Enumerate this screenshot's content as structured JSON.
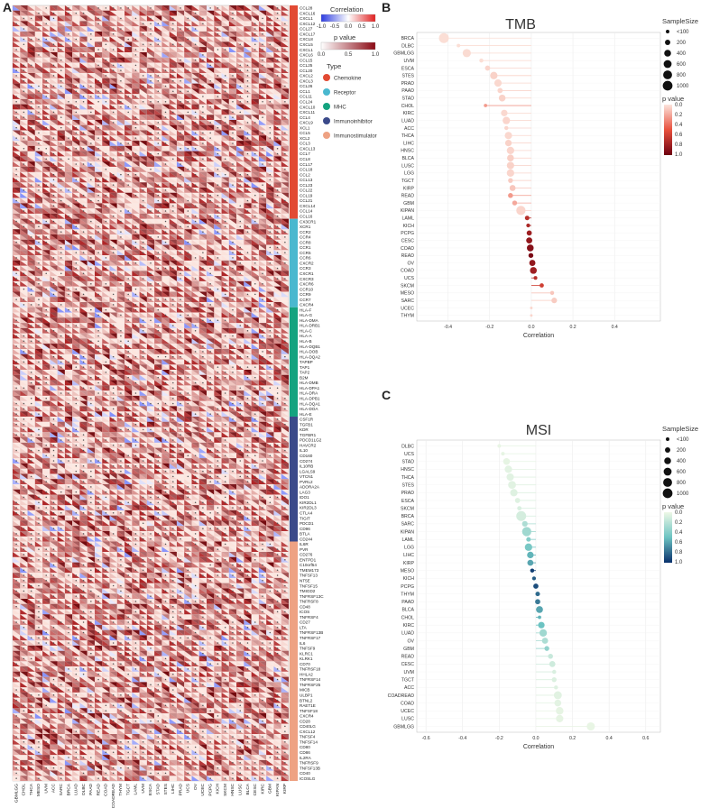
{
  "panels": {
    "A": "A",
    "B": "B",
    "C": "C"
  },
  "chart_data": [
    {
      "type": "heatmap",
      "panel": "A",
      "cancers": [
        "GBMLGG",
        "CHOL",
        "THCA",
        "MESO",
        "UVM",
        "ACC",
        "SARC",
        "BRCA",
        "LUAD",
        "DLBC",
        "PAAD",
        "READ",
        "COAD",
        "COADREAD",
        "THYM",
        "TGCT",
        "LAML",
        "UVM",
        "ESCA",
        "STAD",
        "STES",
        "LIHC",
        "PRAD",
        "UCS",
        "OV",
        "UCEC",
        "PCPG",
        "KICH",
        "SKCM",
        "HNSC",
        "LUSC",
        "BLCA",
        "CESC",
        "KIRC",
        "GBM",
        "KIPAN",
        "KIRP"
      ],
      "genes": [
        "CCL28",
        "CXCL16",
        "CXCL1",
        "CXCL12",
        "CCL27",
        "CXCL17",
        "CXCL8",
        "CXCL5",
        "CXCL1",
        "CXCL6",
        "CCL15",
        "CCL25",
        "CCL20",
        "CXCL2",
        "CXCL3",
        "CCL26",
        "CCL1",
        "CCL11",
        "CCL24",
        "CXCL10",
        "CXCL11",
        "CCL4",
        "CXCL9",
        "XCL1",
        "CCL5",
        "XCL2",
        "CCL3",
        "CXCL13",
        "CCL7",
        "CCL8",
        "CCL17",
        "CCL18",
        "CCL2",
        "CCL13",
        "CCL23",
        "CCL22",
        "CCL19",
        "CCL21",
        "CXCL14",
        "CCL14",
        "CCL16",
        "CX3CR1",
        "XCR1",
        "CCR2",
        "CCR4",
        "CCR8",
        "CCR1",
        "CCR5",
        "CCR6",
        "CXCR2",
        "CCR3",
        "CXCR1",
        "CXCR3",
        "CXCR6",
        "CCR10",
        "CCR9",
        "CCR7",
        "CXCR4",
        "HLA-F",
        "HLA-G",
        "HLA-DMA",
        "HLA-DRB1",
        "HLA-C",
        "HLA-A",
        "HLA-B",
        "HLA-DQB1",
        "HLA-DOB",
        "HLA-DQA2",
        "TAPBP",
        "TAP1",
        "TAP2",
        "B2M",
        "HLA-DMB",
        "HLA-DPA1",
        "HLA-DRA",
        "HLA-DPB1",
        "HLA-DQA1",
        "HLA-DOA",
        "HLA-E",
        "CSF1R",
        "TGFB1",
        "KDR",
        "TGFBR1",
        "PDCD1LG2",
        "HAVCR2",
        "IL10",
        "CD160",
        "CD274",
        "IL10RB",
        "LGALS9",
        "VTCN1",
        "PVRL2",
        "ADORA2A",
        "LAG3",
        "IDO1",
        "KIR2DL1",
        "KIR2DL3",
        "CTLA4",
        "TIGIT",
        "PDCD1",
        "CD96",
        "BTLA",
        "CD244",
        "IL6R",
        "PVR",
        "CD276",
        "ENTPD1",
        "C10orf54",
        "TMEM173",
        "TNFSF13",
        "NT5E",
        "TNFSF15",
        "TMIGD2",
        "TNFRSF13C",
        "TNFRSF8",
        "CD48",
        "ICOS",
        "TNFRSF4",
        "CD27",
        "LTA",
        "TNFRSF13B",
        "TNFRSF17",
        "IL6",
        "TNFSF9",
        "KLRC1",
        "KLRK1",
        "CD70",
        "TNFRSF18",
        "HHLA2",
        "TNFRSF14",
        "TNFRSF25",
        "MICB",
        "ULBP1",
        "BTNL2",
        "RAET1E",
        "TNFSF18",
        "CXCR4",
        "CD28",
        "CD40LG",
        "CXCL12",
        "TNFSF4",
        "TNFSF14",
        "CD80",
        "CD86",
        "IL2RA",
        "TNFRSF9",
        "TNFSF13B",
        "CD40",
        "ICOSLG"
      ],
      "types": [
        {
          "name": "Chemokine",
          "color": "#e24a33",
          "count": 41
        },
        {
          "name": "Receptor",
          "color": "#4ab8cf",
          "count": 17
        },
        {
          "name": "MHC",
          "color": "#14a37f",
          "count": 21
        },
        {
          "name": "Immunoinhibitor",
          "color": "#3b4a8a",
          "count": 24
        },
        {
          "name": "Immunostimulator",
          "color": "#eea283",
          "count": 46
        }
      ],
      "legend": {
        "correlation_title": "Correlation",
        "correlation_ticks": [
          "-1.0",
          "-0.5",
          "0.0",
          "0.5",
          "1.0"
        ],
        "pvalue_title": "p value",
        "pvalue_ticks": [
          "0.0",
          "0.5",
          "1.0"
        ],
        "type_title": "Type"
      }
    },
    {
      "type": "scatter",
      "panel": "B",
      "title": "TMB",
      "xlabel": "Correlation",
      "xlim": [
        -0.55,
        0.62
      ],
      "xticks": [
        "-0.4",
        "-0.2",
        "0.0",
        "0.2",
        "0.4"
      ],
      "points": [
        {
          "label": "BRCA",
          "x": -0.42,
          "p": 0.02,
          "size": 1050
        },
        {
          "label": "DLBC",
          "x": -0.35,
          "p": 0.02,
          "size": 50
        },
        {
          "label": "GBMLGG",
          "x": -0.31,
          "p": 0.03,
          "size": 650
        },
        {
          "label": "UVM",
          "x": -0.24,
          "p": 0.02,
          "size": 80
        },
        {
          "label": "ESCA",
          "x": -0.21,
          "p": 0.05,
          "size": 180
        },
        {
          "label": "STES",
          "x": -0.18,
          "p": 0.06,
          "size": 500
        },
        {
          "label": "PRAD",
          "x": -0.16,
          "p": 0.04,
          "size": 490
        },
        {
          "label": "PAAD",
          "x": -0.15,
          "p": 0.05,
          "size": 180
        },
        {
          "label": "STAD",
          "x": -0.14,
          "p": 0.06,
          "size": 400
        },
        {
          "label": "CHOL",
          "x": -0.22,
          "p": 0.25,
          "size": 40
        },
        {
          "label": "KIRC",
          "x": -0.13,
          "p": 0.04,
          "size": 350
        },
        {
          "label": "LUAD",
          "x": -0.12,
          "p": 0.05,
          "size": 510
        },
        {
          "label": "ACC",
          "x": -0.12,
          "p": 0.05,
          "size": 80
        },
        {
          "label": "THCA",
          "x": -0.11,
          "p": 0.04,
          "size": 490
        },
        {
          "label": "LIHC",
          "x": -0.11,
          "p": 0.06,
          "size": 360
        },
        {
          "label": "HNSC",
          "x": -0.1,
          "p": 0.05,
          "size": 500
        },
        {
          "label": "BLCA",
          "x": -0.1,
          "p": 0.07,
          "size": 410
        },
        {
          "label": "LUSC",
          "x": -0.1,
          "p": 0.06,
          "size": 490
        },
        {
          "label": "LGG",
          "x": -0.1,
          "p": 0.05,
          "size": 510
        },
        {
          "label": "TGCT",
          "x": -0.1,
          "p": 0.08,
          "size": 150
        },
        {
          "label": "KIRP",
          "x": -0.09,
          "p": 0.1,
          "size": 280
        },
        {
          "label": "READ",
          "x": -0.1,
          "p": 0.25,
          "size": 160
        },
        {
          "label": "GBM",
          "x": -0.08,
          "p": 0.2,
          "size": 150
        },
        {
          "label": "KIPAN",
          "x": -0.05,
          "p": 0.05,
          "size": 880
        },
        {
          "label": "LAML",
          "x": -0.02,
          "p": 0.7,
          "size": 120
        },
        {
          "label": "KICH",
          "x": -0.015,
          "p": 0.75,
          "size": 65
        },
        {
          "label": "PCPG",
          "x": -0.01,
          "p": 0.8,
          "size": 180
        },
        {
          "label": "CESC",
          "x": -0.01,
          "p": 0.85,
          "size": 290
        },
        {
          "label": "COAD",
          "x": -0.005,
          "p": 0.9,
          "size": 400
        },
        {
          "label": "READ",
          "x": -0.002,
          "p": 0.95,
          "size": 150
        },
        {
          "label": "OV",
          "x": 0.005,
          "p": 0.85,
          "size": 300
        },
        {
          "label": "COAD",
          "x": 0.01,
          "p": 0.8,
          "size": 400
        },
        {
          "label": "UCS",
          "x": 0.02,
          "p": 0.7,
          "size": 55
        },
        {
          "label": "SKCM",
          "x": 0.05,
          "p": 0.6,
          "size": 100
        },
        {
          "label": "MESO",
          "x": 0.1,
          "p": 0.1,
          "size": 80
        },
        {
          "label": "SARC",
          "x": 0.11,
          "p": 0.08,
          "size": 230
        },
        {
          "label": "UCEC",
          "x": 0.0,
          "p": 0.05,
          "size": 10
        },
        {
          "label": "THYM",
          "x": 0.0,
          "p": 0.05,
          "size": 10
        }
      ],
      "legend": {
        "size_title": "SampleSize",
        "size_labels": [
          "<100",
          "200",
          "400",
          "600",
          "800",
          "1000"
        ],
        "p_title": "p value",
        "p_ticks": [
          "0.0",
          "0.2",
          "0.4",
          "0.6",
          "0.8",
          "1.0"
        ]
      }
    },
    {
      "type": "scatter",
      "panel": "C",
      "title": "MSI",
      "xlabel": "Correlation",
      "xlim": [
        -0.65,
        0.68
      ],
      "xticks": [
        "-0.6",
        "-0.4",
        "-0.2",
        "0.0",
        "0.2",
        "0.4",
        "0.6"
      ],
      "points": [
        {
          "label": "DLBC",
          "x": -0.2,
          "p": 0.02,
          "size": 50
        },
        {
          "label": "UCS",
          "x": -0.18,
          "p": 0.03,
          "size": 55
        },
        {
          "label": "STAD",
          "x": -0.16,
          "p": 0.03,
          "size": 400
        },
        {
          "label": "HNSC",
          "x": -0.15,
          "p": 0.04,
          "size": 500
        },
        {
          "label": "THCA",
          "x": -0.14,
          "p": 0.05,
          "size": 490
        },
        {
          "label": "STES",
          "x": -0.13,
          "p": 0.05,
          "size": 580
        },
        {
          "label": "PRAD",
          "x": -0.12,
          "p": 0.06,
          "size": 490
        },
        {
          "label": "ESCA",
          "x": -0.1,
          "p": 0.06,
          "size": 180
        },
        {
          "label": "SKCM",
          "x": -0.09,
          "p": 0.08,
          "size": 100
        },
        {
          "label": "BRCA",
          "x": -0.08,
          "p": 0.1,
          "size": 1050
        },
        {
          "label": "SARC",
          "x": -0.06,
          "p": 0.25,
          "size": 230
        },
        {
          "label": "KIPAN",
          "x": -0.05,
          "p": 0.3,
          "size": 880
        },
        {
          "label": "LAML",
          "x": -0.04,
          "p": 0.4,
          "size": 120
        },
        {
          "label": "LGG",
          "x": -0.04,
          "p": 0.45,
          "size": 510
        },
        {
          "label": "LIHC",
          "x": -0.03,
          "p": 0.55,
          "size": 360
        },
        {
          "label": "KIRP",
          "x": -0.03,
          "p": 0.6,
          "size": 280
        },
        {
          "label": "MESO",
          "x": -0.02,
          "p": 0.95,
          "size": 80
        },
        {
          "label": "KICH",
          "x": -0.01,
          "p": 0.85,
          "size": 65
        },
        {
          "label": "PCPG",
          "x": 0.0,
          "p": 0.9,
          "size": 180
        },
        {
          "label": "THYM",
          "x": 0.01,
          "p": 0.8,
          "size": 120
        },
        {
          "label": "PAAD",
          "x": 0.01,
          "p": 0.75,
          "size": 180
        },
        {
          "label": "BLCA",
          "x": 0.02,
          "p": 0.6,
          "size": 410
        },
        {
          "label": "CHOL",
          "x": 0.02,
          "p": 0.55,
          "size": 40
        },
        {
          "label": "KIRC",
          "x": 0.03,
          "p": 0.5,
          "size": 350
        },
        {
          "label": "LUAD",
          "x": 0.04,
          "p": 0.3,
          "size": 510
        },
        {
          "label": "OV",
          "x": 0.05,
          "p": 0.25,
          "size": 300
        },
        {
          "label": "GBM",
          "x": 0.06,
          "p": 0.35,
          "size": 150
        },
        {
          "label": "READ",
          "x": 0.08,
          "p": 0.15,
          "size": 160
        },
        {
          "label": "CESC",
          "x": 0.09,
          "p": 0.12,
          "size": 290
        },
        {
          "label": "UVM",
          "x": 0.1,
          "p": 0.08,
          "size": 80
        },
        {
          "label": "TGCT",
          "x": 0.1,
          "p": 0.07,
          "size": 150
        },
        {
          "label": "ACC",
          "x": 0.11,
          "p": 0.06,
          "size": 80
        },
        {
          "label": "COADREAD",
          "x": 0.12,
          "p": 0.05,
          "size": 600
        },
        {
          "label": "COAD",
          "x": 0.12,
          "p": 0.04,
          "size": 400
        },
        {
          "label": "UCEC",
          "x": 0.13,
          "p": 0.03,
          "size": 530
        },
        {
          "label": "LUSC",
          "x": 0.13,
          "p": 0.03,
          "size": 490
        },
        {
          "label": "GBMLGG",
          "x": 0.3,
          "p": 0.02,
          "size": 650
        }
      ],
      "legend": {
        "size_title": "SampleSize",
        "size_labels": [
          "<100",
          "200",
          "400",
          "600",
          "800",
          "1000"
        ],
        "p_title": "p value",
        "p_ticks": [
          "0.0",
          "0.2",
          "0.4",
          "0.6",
          "0.8",
          "1.0"
        ]
      }
    }
  ]
}
